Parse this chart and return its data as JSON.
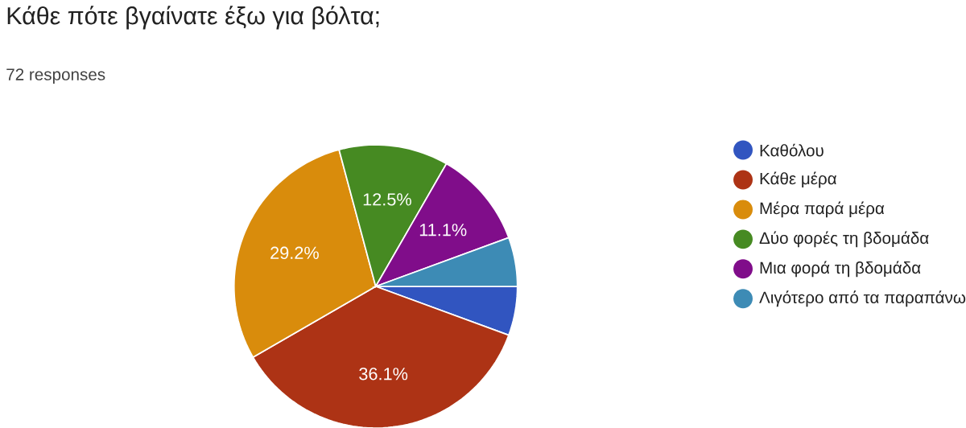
{
  "chart_data": {
    "type": "pie",
    "title": "Κάθε πότε βγαίνατε έξω για βόλτα;",
    "subtitle": "72 responses",
    "categories": [
      "Καθόλου",
      "Κάθε μέρα",
      "Μέρα παρά μέρα",
      "Δύο φορές τη βδομάδα",
      "Μια φορά τη βδομάδα",
      "Λιγότερο από τα παραπάνω"
    ],
    "values": [
      5.6,
      36.1,
      29.2,
      12.5,
      11.1,
      5.6
    ],
    "colors": [
      "#3155c0",
      "#ad3315",
      "#d98c0c",
      "#468a22",
      "#800d8a",
      "#3d8bb5"
    ],
    "value_labels": [
      null,
      "36.1%",
      "29.2%",
      "12.5%",
      "11.1%",
      null
    ],
    "legend": "right"
  }
}
